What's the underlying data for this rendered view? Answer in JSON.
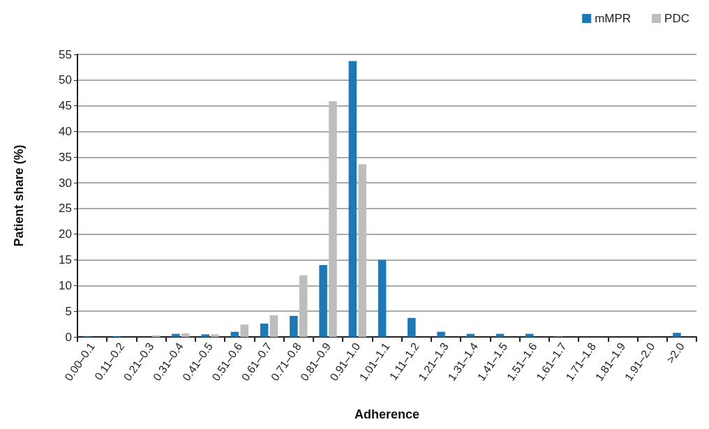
{
  "chart_data": {
    "type": "bar",
    "xlabel": "Adherence",
    "ylabel": "Patient share (%)",
    "categories": [
      "0.00–0.1",
      "0.11–0.2",
      "0.21–0.3",
      "0.31–0.4",
      "0.41–0.5",
      "0.51–0.6",
      "0.61–0.7",
      "0.71–0.8",
      "0.81–0.9",
      "0.91–1.0",
      "1.01–1.1",
      "1.11–1.2",
      "1.21–1.3",
      "1.31–1.4",
      "1.41–1.5",
      "1.51–1.6",
      "1.61–1.7",
      "1.71–1.8",
      "1.81–1.9",
      "1.91–2.0",
      ">2.0"
    ],
    "series": [
      {
        "name": "mMPR",
        "color": "#1f77b4",
        "values": [
          0.1,
          0.1,
          0,
          0.6,
          0.5,
          1.0,
          2.6,
          4.1,
          14,
          53.7,
          15,
          3.7,
          1.0,
          0.6,
          0.6,
          0.6,
          0.1,
          0,
          0,
          0,
          0.8
        ]
      },
      {
        "name": "PDC",
        "color": "#bdbdbd",
        "values": [
          null,
          null,
          0.3,
          0.7,
          0.5,
          2.4,
          4.2,
          12,
          45.9,
          33.6,
          0,
          0,
          0,
          0,
          0,
          0,
          0,
          0,
          0,
          0,
          0
        ]
      }
    ],
    "ylim": [
      0,
      55
    ],
    "yticks": [
      0,
      5,
      10,
      15,
      20,
      25,
      30,
      35,
      40,
      45,
      50,
      55
    ],
    "grid": "y",
    "legend": "top right"
  }
}
